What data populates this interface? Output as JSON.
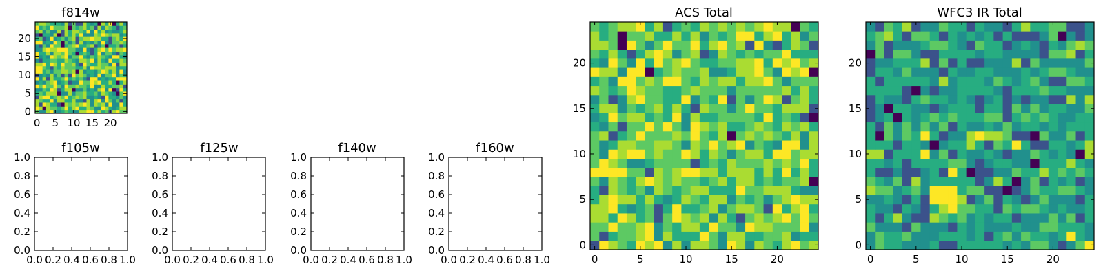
{
  "chart_data": [
    {
      "type": "heatmap",
      "title": "f814w",
      "grid_size": 25,
      "colormap": "viridis",
      "xticks": [
        "0",
        "5",
        "10",
        "15",
        "20"
      ],
      "yticks": [
        "0",
        "5",
        "10",
        "15",
        "20"
      ],
      "xlim": [
        -0.5,
        24.5
      ],
      "ylim": [
        -0.5,
        24.5
      ],
      "values_note": ""
    },
    {
      "type": "empty",
      "title": "f105w",
      "xticks": [
        "0.0",
        "0.2",
        "0.4",
        "0.6",
        "0.8",
        "1.0"
      ],
      "yticks": [
        "0.0",
        "0.2",
        "0.4",
        "0.6",
        "0.8",
        "1.0"
      ],
      "xlim": [
        0,
        1
      ],
      "ylim": [
        0,
        1
      ]
    },
    {
      "type": "empty",
      "title": "f125w",
      "xticks": [
        "0.0",
        "0.2",
        "0.4",
        "0.6",
        "0.8",
        "1.0"
      ],
      "yticks": [
        "0.0",
        "0.2",
        "0.4",
        "0.6",
        "0.8",
        "1.0"
      ],
      "xlim": [
        0,
        1
      ],
      "ylim": [
        0,
        1
      ]
    },
    {
      "type": "empty",
      "title": "f140w",
      "xticks": [
        "0.0",
        "0.2",
        "0.4",
        "0.6",
        "0.8",
        "1.0"
      ],
      "yticks": [
        "0.0",
        "0.2",
        "0.4",
        "0.6",
        "0.8",
        "1.0"
      ],
      "xlim": [
        0,
        1
      ],
      "ylim": [
        0,
        1
      ]
    },
    {
      "type": "empty",
      "title": "f160w",
      "xticks": [
        "0.0",
        "0.2",
        "0.4",
        "0.6",
        "0.8",
        "1.0"
      ],
      "yticks": [
        "0.0",
        "0.2",
        "0.4",
        "0.6",
        "0.8",
        "1.0"
      ],
      "xlim": [
        0,
        1
      ],
      "ylim": [
        0,
        1
      ]
    },
    {
      "type": "heatmap",
      "title": "ACS Total",
      "grid_size": 25,
      "colormap": "viridis",
      "xticks": [
        "0",
        "5",
        "10",
        "15",
        "20"
      ],
      "yticks": [
        "0",
        "5",
        "10",
        "15",
        "20"
      ],
      "xlim": [
        -0.5,
        24.5
      ],
      "ylim": [
        -0.5,
        24.5
      ]
    },
    {
      "type": "heatmap",
      "title": "WFC3 IR Total",
      "grid_size": 25,
      "colormap": "viridis",
      "xticks": [
        "0",
        "5",
        "10",
        "15",
        "20"
      ],
      "yticks": [
        "0",
        "5",
        "10",
        "15",
        "20"
      ],
      "xlim": [
        -0.5,
        24.5
      ],
      "ylim": [
        -0.5,
        24.5
      ],
      "bright_block": {
        "x": [
          7,
          9
        ],
        "y": [
          5,
          6
        ]
      }
    }
  ],
  "colors": {
    "viridis": [
      "#440154",
      "#3b528b",
      "#21908d",
      "#27ad81",
      "#5dc963",
      "#aadc32",
      "#fde725"
    ]
  }
}
